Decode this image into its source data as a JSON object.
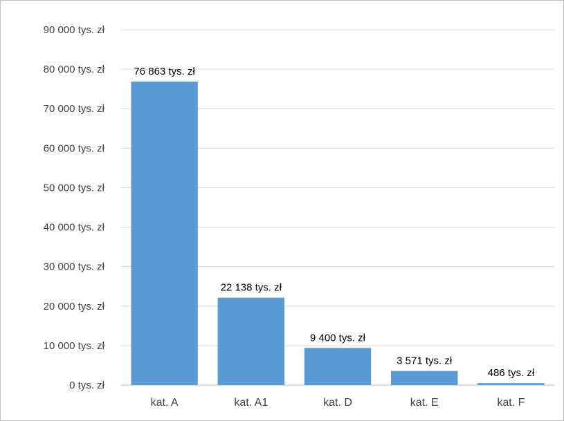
{
  "chart_data": {
    "type": "bar",
    "categories": [
      "kat. A",
      "kat. A1",
      "kat. D",
      "kat. E",
      "kat. F"
    ],
    "values": [
      76863,
      22138,
      9400,
      3571,
      486
    ],
    "data_labels": [
      "76 863 tys. zł",
      "22 138 tys. zł",
      "9 400 tys. zł",
      "3 571 tys. zł",
      "486 tys. zł"
    ],
    "ylim": [
      0,
      90000
    ],
    "yticks": [
      0,
      10000,
      20000,
      30000,
      40000,
      50000,
      60000,
      70000,
      80000,
      90000
    ],
    "ytick_labels": [
      "0 tys. zł",
      "10 000 tys. zł",
      "20 000 tys. zł",
      "30 000 tys. zł",
      "40 000 tys. zł",
      "50 000 tys. zł",
      "60 000 tys. zł",
      "70 000 tys. zł",
      "80 000 tys. zł",
      "90 000 tys. zł"
    ],
    "title": "",
    "xlabel": "",
    "ylabel": "",
    "grid": true,
    "legend": "none",
    "bar_color": "#5b9bd5",
    "grid_color": "#d9d9d9"
  }
}
